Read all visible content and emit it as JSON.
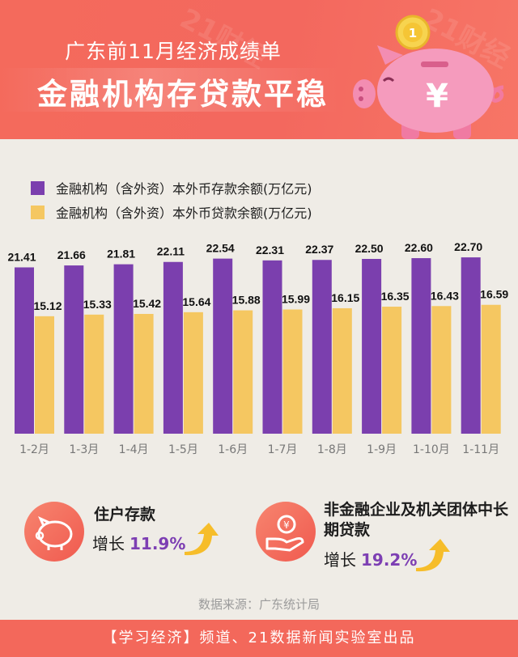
{
  "header": {
    "subtitle": "广东前11月经济成绩单",
    "title": "金融机构存贷款平稳",
    "watermark": "21财经"
  },
  "colors": {
    "deposit": "#7b3fae",
    "loan": "#f5c761",
    "accent": "#f3685b",
    "highlight": "#7d3fb3"
  },
  "chart_data": {
    "type": "bar",
    "categories": [
      "1-2月",
      "1-3月",
      "1-4月",
      "1-5月",
      "1-6月",
      "1-7月",
      "1-8月",
      "1-9月",
      "1-10月",
      "1-11月"
    ],
    "series": [
      {
        "name": "金融机构（含外资）本外币存款余额(万亿元)",
        "values": [
          21.41,
          21.66,
          21.81,
          22.11,
          22.54,
          22.31,
          22.37,
          22.5,
          22.6,
          22.7
        ]
      },
      {
        "name": "金融机构（含外资）本外币贷款余额(万亿元)",
        "values": [
          15.12,
          15.33,
          15.42,
          15.64,
          15.88,
          15.99,
          16.15,
          16.35,
          16.43,
          16.59
        ]
      }
    ],
    "legend_placement": "top-left",
    "grid": false,
    "value_labels": true
  },
  "stats": [
    {
      "title": "住户存款",
      "prefix": "增长",
      "value": "11.9%",
      "icon": "piggy-bank-icon"
    },
    {
      "title": "非金融企业及机关团体中长期贷款",
      "prefix": "增长",
      "value": "19.2%",
      "icon": "hand-coin-icon"
    }
  ],
  "source": "数据来源：广东统计局",
  "footer": "【学习经济】频道、21数据新闻实验室出品"
}
